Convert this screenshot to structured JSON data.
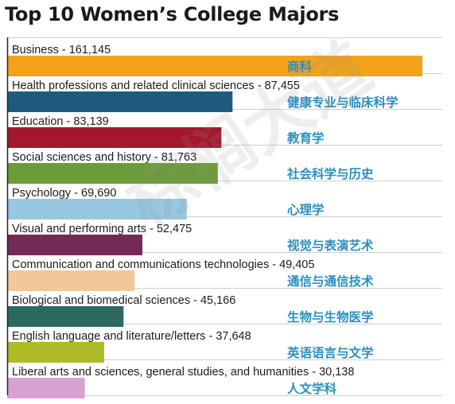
{
  "chart_data": {
    "type": "bar",
    "orientation": "horizontal",
    "title": "Top 10 Women’s College Majors",
    "xlabel": "",
    "ylabel": "",
    "grid": true,
    "legend": "none",
    "categories": [
      "Business - 161,145",
      "Health professions and related clinical sciences - 87,455",
      "Education - 83,139",
      "Social sciences and history - 81,763",
      "Psychology - 69,690",
      "Visual and performing arts - 52,475",
      "Communication and communications technologies - 49,405",
      "Biological and biomedical sciences - 45,166",
      "English language and literature/letters - 37,648",
      "Liberal arts and sciences, general studies, and humanities - 30,138"
    ],
    "chinese_labels": [
      "商科",
      "健康专业与临床科学",
      "教育学",
      "社会科学与历史",
      "心理学",
      "视觉与表演艺术",
      "通信与通信技术",
      "生物与生物医学",
      "英语语言与文学",
      "人文学科"
    ],
    "values": [
      161145,
      87455,
      83139,
      81763,
      69690,
      52475,
      49405,
      45166,
      37648,
      30138
    ],
    "colors": [
      "#f2a31b",
      "#1e5a7d",
      "#a4172c",
      "#6c9b3a",
      "#97c7e1",
      "#742a57",
      "#f3c79a",
      "#2c6a61",
      "#adbb26",
      "#d8a2d0"
    ]
  },
  "watermark": "棕榈大道",
  "colors": {
    "chinese_label": "#2a8fbf",
    "grid": "#cfcfcf",
    "axis": "#222222"
  }
}
